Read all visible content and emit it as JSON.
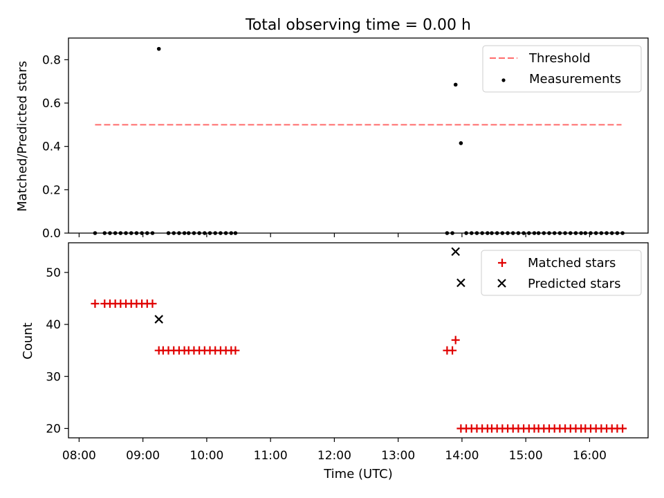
{
  "colors": {
    "threshold": "#ff6b6b",
    "matched": "#e00000",
    "predicted": "#000000",
    "measurement": "#000000"
  },
  "chart_data": [
    {
      "type": "scatter",
      "title": "Total observing time = 0.00 h",
      "xlabel": "",
      "ylabel": "Matched/Predicted stars",
      "xlim": [
        "07:50",
        "16:55"
      ],
      "ylim": [
        0,
        0.9
      ],
      "yticks": [
        0.0,
        0.2,
        0.4,
        0.6,
        0.8
      ],
      "ytick_labels": [
        "0.0",
        "0.2",
        "0.4",
        "0.6",
        "0.8"
      ],
      "legend_position": "top-right",
      "legend": [
        "Threshold",
        "Measurements"
      ],
      "threshold": {
        "name": "Threshold",
        "y": 0.5,
        "x": [
          "08:15",
          "16:30"
        ],
        "style": "dashed"
      },
      "series": [
        {
          "name": "Measurements",
          "x": [
            "08:15",
            "08:24",
            "08:29",
            "08:34",
            "08:39",
            "08:44",
            "08:49",
            "08:54",
            "08:59",
            "09:04",
            "09:09",
            "09:15",
            "09:24",
            "09:29",
            "09:34",
            "09:39",
            "09:43",
            "09:48",
            "09:53",
            "09:58",
            "10:03",
            "10:08",
            "10:13",
            "10:18",
            "10:23",
            "10:27",
            "13:46",
            "13:51",
            "13:54",
            "13:59",
            "14:04",
            "14:09",
            "14:14",
            "14:19",
            "14:24",
            "14:28",
            "14:33",
            "14:38",
            "14:43",
            "14:48",
            "14:53",
            "14:58",
            "15:03",
            "15:08",
            "15:12",
            "15:17",
            "15:22",
            "15:27",
            "15:32",
            "15:37",
            "15:42",
            "15:47",
            "15:52",
            "15:56",
            "16:01",
            "16:06",
            "16:11",
            "16:16",
            "16:21",
            "16:26",
            "16:31"
          ],
          "y": [
            0,
            0,
            0,
            0,
            0,
            0,
            0,
            0,
            0,
            0,
            0,
            0.85,
            0,
            0,
            0,
            0,
            0,
            0,
            0,
            0,
            0,
            0,
            0,
            0,
            0,
            0,
            0,
            0,
            0.685,
            0.415,
            0,
            0,
            0,
            0,
            0,
            0,
            0,
            0,
            0,
            0,
            0,
            0,
            0,
            0,
            0,
            0,
            0,
            0,
            0,
            0,
            0,
            0,
            0,
            0,
            0,
            0,
            0,
            0,
            0,
            0,
            0
          ]
        }
      ]
    },
    {
      "type": "scatter",
      "title": "",
      "xlabel": "Time (UTC)",
      "ylabel": "Count",
      "xlim": [
        "07:50",
        "16:55"
      ],
      "ylim": [
        18.2,
        55.7
      ],
      "xticks": [
        "08:00",
        "09:00",
        "10:00",
        "11:00",
        "12:00",
        "13:00",
        "14:00",
        "15:00",
        "16:00"
      ],
      "yticks": [
        20,
        30,
        40,
        50
      ],
      "ytick_labels": [
        "20",
        "30",
        "40",
        "50"
      ],
      "legend_position": "top-right",
      "legend": [
        "Matched stars",
        "Predicted stars"
      ],
      "series": [
        {
          "name": "Matched stars",
          "marker": "+",
          "x": [
            "08:15",
            "08:24",
            "08:29",
            "08:34",
            "08:39",
            "08:44",
            "08:49",
            "08:54",
            "08:59",
            "09:04",
            "09:09",
            "09:15",
            "09:19",
            "09:24",
            "09:29",
            "09:34",
            "09:39",
            "09:43",
            "09:48",
            "09:53",
            "09:58",
            "10:03",
            "10:08",
            "10:13",
            "10:18",
            "10:23",
            "10:27",
            "13:46",
            "13:51",
            "13:54",
            "13:59",
            "14:04",
            "14:09",
            "14:14",
            "14:19",
            "14:24",
            "14:28",
            "14:33",
            "14:38",
            "14:43",
            "14:48",
            "14:53",
            "14:58",
            "15:03",
            "15:08",
            "15:12",
            "15:17",
            "15:22",
            "15:27",
            "15:32",
            "15:37",
            "15:42",
            "15:47",
            "15:52",
            "15:56",
            "16:01",
            "16:06",
            "16:11",
            "16:16",
            "16:21",
            "16:26",
            "16:31"
          ],
          "y": [
            44,
            44,
            44,
            44,
            44,
            44,
            44,
            44,
            44,
            44,
            44,
            35,
            35,
            35,
            35,
            35,
            35,
            35,
            35,
            35,
            35,
            35,
            35,
            35,
            35,
            35,
            35,
            35,
            35,
            37,
            20,
            20,
            20,
            20,
            20,
            20,
            20,
            20,
            20,
            20,
            20,
            20,
            20,
            20,
            20,
            20,
            20,
            20,
            20,
            20,
            20,
            20,
            20,
            20,
            20,
            20,
            20,
            20,
            20,
            20,
            20,
            20
          ]
        },
        {
          "name": "Predicted stars",
          "marker": "x",
          "x": [
            "09:15",
            "13:54",
            "13:59"
          ],
          "y": [
            41,
            54,
            48
          ]
        }
      ]
    }
  ]
}
